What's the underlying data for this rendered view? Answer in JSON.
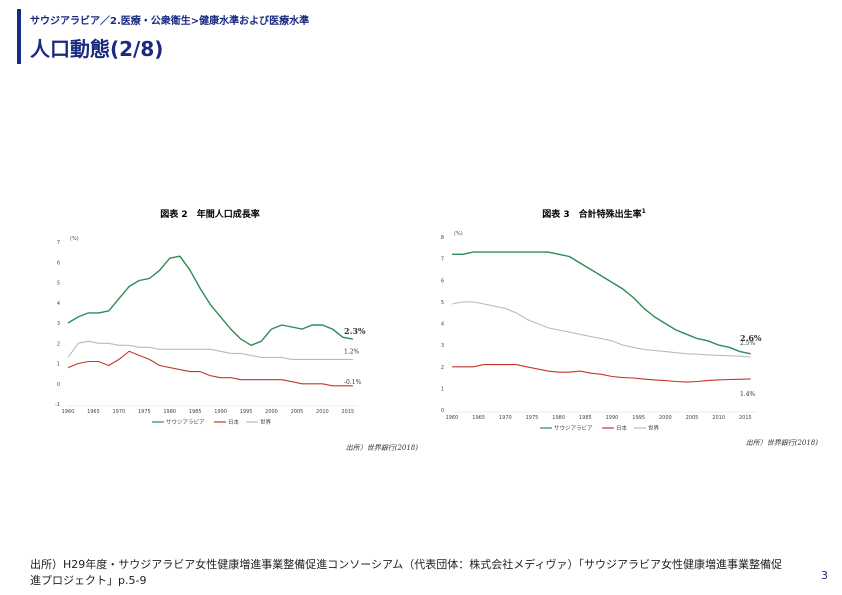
{
  "header": {
    "breadcrumb": "サウジアラビア／2.医療・公衆衛生>健康水準および医療水準",
    "title": "人口動態(2/8)"
  },
  "footer": {
    "source": "出所）H29年度・サウジアラビア女性健康増進事業整備促進コンソーシアム（代表団体：株式会社メディヴァ）「サウジアラビア女性健康増進事業整備促進プロジェクト」p.5-9",
    "page_number": "3"
  },
  "colors": {
    "accent": "#1a2a80",
    "saudi": "#2e8b57",
    "japan": "#c0392b",
    "world": "#bbbbbb"
  },
  "chart_data": [
    {
      "type": "line",
      "title": "図表 2　年間人口成長率",
      "unit": "(%)",
      "source": "出所）世界銀行(2018)",
      "x": [
        1960,
        1962,
        1964,
        1966,
        1968,
        1970,
        1972,
        1974,
        1976,
        1978,
        1980,
        1982,
        1984,
        1986,
        1988,
        1990,
        1992,
        1994,
        1996,
        1998,
        2000,
        2002,
        2004,
        2006,
        2008,
        2010,
        2012,
        2014,
        2016
      ],
      "xticks": [
        1960,
        1965,
        1970,
        1975,
        1980,
        1985,
        1990,
        1995,
        2000,
        2005,
        2010,
        2015
      ],
      "xtick_labels": [
        "1960",
        "1965",
        "1970",
        "1975",
        "1980",
        "1985",
        "1990",
        "1995",
        "2000",
        "2005",
        "2010",
        "2015"
      ],
      "yticks": [
        -1,
        0,
        1,
        2,
        3,
        4,
        5,
        6,
        7
      ],
      "ytick_labels": [
        "-1",
        "0",
        "1",
        "2",
        "3",
        "4",
        "5",
        "6",
        "7"
      ],
      "xlim": [
        1960,
        2017
      ],
      "ylim": [
        -1,
        7
      ],
      "series": [
        {
          "name": "サウジアラビア",
          "key": "saudi",
          "end_label": "2.3%",
          "bold_label": true,
          "values": [
            3.0,
            3.3,
            3.5,
            3.5,
            3.6,
            4.2,
            4.8,
            5.1,
            5.2,
            5.6,
            6.2,
            6.3,
            5.6,
            4.7,
            3.9,
            3.3,
            2.7,
            2.2,
            1.9,
            2.1,
            2.7,
            2.9,
            2.8,
            2.7,
            2.9,
            2.9,
            2.7,
            2.3,
            2.2
          ]
        },
        {
          "name": "日本",
          "key": "japan",
          "end_label": "-0.1%",
          "bold_label": false,
          "values": [
            0.8,
            1.0,
            1.1,
            1.1,
            0.9,
            1.2,
            1.6,
            1.4,
            1.2,
            0.9,
            0.8,
            0.7,
            0.6,
            0.6,
            0.4,
            0.3,
            0.3,
            0.2,
            0.2,
            0.2,
            0.2,
            0.2,
            0.1,
            0.0,
            0.0,
            0.0,
            -0.1,
            -0.1,
            -0.1
          ]
        },
        {
          "name": "世界",
          "key": "world",
          "end_label": "1.2%",
          "bold_label": false,
          "values": [
            1.3,
            2.0,
            2.1,
            2.0,
            2.0,
            1.9,
            1.9,
            1.8,
            1.8,
            1.7,
            1.7,
            1.7,
            1.7,
            1.7,
            1.7,
            1.6,
            1.5,
            1.5,
            1.4,
            1.3,
            1.3,
            1.3,
            1.2,
            1.2,
            1.2,
            1.2,
            1.2,
            1.2,
            1.2
          ]
        }
      ],
      "legend": "bottom"
    },
    {
      "type": "line",
      "title": "図表 3　合計特殊出生率",
      "title_sup": "1",
      "unit": "(%)",
      "source": "出所）世界銀行(2018)",
      "x": [
        1960,
        1962,
        1964,
        1966,
        1968,
        1970,
        1972,
        1974,
        1976,
        1978,
        1980,
        1982,
        1984,
        1986,
        1988,
        1990,
        1992,
        1994,
        1996,
        1998,
        2000,
        2002,
        2004,
        2006,
        2008,
        2010,
        2012,
        2014,
        2016
      ],
      "xticks": [
        1960,
        1965,
        1970,
        1975,
        1980,
        1985,
        1990,
        1995,
        2000,
        2005,
        2010,
        2015
      ],
      "xtick_labels": [
        "1960",
        "1965",
        "1970",
        "1975",
        "1980",
        "1985",
        "1990",
        "1995",
        "2000",
        "2005",
        "2010",
        "2015"
      ],
      "yticks": [
        0,
        1,
        2,
        3,
        4,
        5,
        6,
        7,
        8
      ],
      "ytick_labels": [
        "0",
        "1",
        "2",
        "3",
        "4",
        "5",
        "6",
        "7",
        "8"
      ],
      "xlim": [
        1960,
        2017
      ],
      "ylim": [
        0,
        8
      ],
      "series": [
        {
          "name": "サウジアラビア",
          "key": "saudi",
          "end_label": "2.6%",
          "bold_label": true,
          "values": [
            7.2,
            7.2,
            7.3,
            7.3,
            7.3,
            7.3,
            7.3,
            7.3,
            7.3,
            7.3,
            7.2,
            7.1,
            6.8,
            6.5,
            6.2,
            5.9,
            5.6,
            5.2,
            4.7,
            4.3,
            4.0,
            3.7,
            3.5,
            3.3,
            3.2,
            3.0,
            2.9,
            2.7,
            2.6
          ]
        },
        {
          "name": "日本",
          "key": "japan",
          "end_label": "1.4%",
          "bold_label": false,
          "values": [
            2.0,
            2.0,
            2.0,
            2.1,
            2.1,
            2.1,
            2.1,
            2.0,
            1.9,
            1.8,
            1.75,
            1.75,
            1.8,
            1.7,
            1.65,
            1.55,
            1.5,
            1.48,
            1.43,
            1.39,
            1.36,
            1.32,
            1.29,
            1.32,
            1.37,
            1.39,
            1.41,
            1.42,
            1.44
          ]
        },
        {
          "name": "世界",
          "key": "world",
          "end_label": "2.5%",
          "bold_label": false,
          "values": [
            4.9,
            5.0,
            5.0,
            4.9,
            4.8,
            4.7,
            4.5,
            4.2,
            4.0,
            3.8,
            3.7,
            3.6,
            3.5,
            3.4,
            3.3,
            3.2,
            3.0,
            2.9,
            2.8,
            2.75,
            2.7,
            2.65,
            2.6,
            2.58,
            2.55,
            2.53,
            2.51,
            2.49,
            2.45
          ]
        }
      ],
      "legend": "bottom"
    }
  ]
}
